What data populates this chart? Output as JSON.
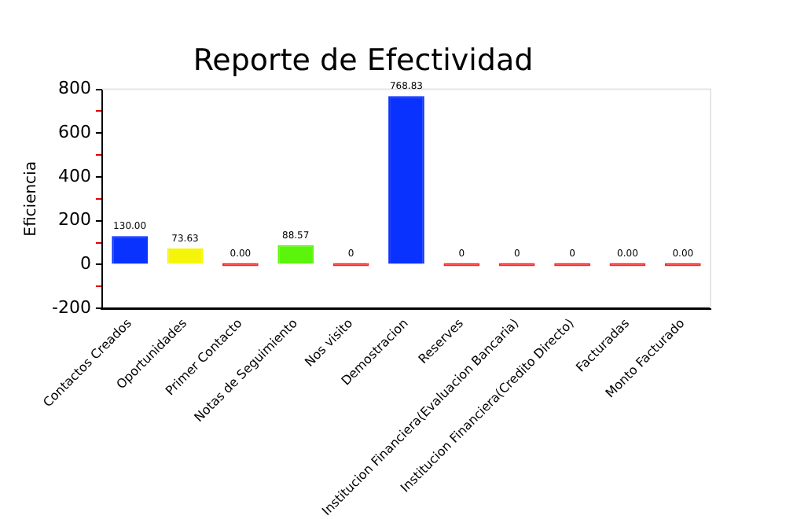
{
  "chart_data": {
    "type": "bar",
    "title": "Reporte de Efectividad",
    "ylabel": "Eficiencia",
    "categories": [
      "Contactos Creados",
      "Oportunidades",
      "Primer Contacto",
      "Notas de Seguimiento",
      "Nos visito",
      "Demostracion",
      "Reserves",
      "Institucion Financiera(Evaluacion Bancaria)",
      "Institucion Financiera(Credito Directo)",
      "Facturadas",
      "Monto Facturado"
    ],
    "values": [
      130.0,
      73.63,
      0.0,
      88.57,
      0,
      768.83,
      0,
      0,
      0,
      0.0,
      0.0
    ],
    "value_labels": [
      "130.00",
      "73.63",
      "0.00",
      "88.57",
      "0",
      "768.83",
      "0",
      "0",
      "0",
      "0.00",
      "0.00"
    ],
    "colors": [
      "#0a32ff",
      "#f5f50a",
      "#ff2020",
      "#5af50a",
      "#ff2020",
      "#0a32ff",
      "#ff2020",
      "#ff2020",
      "#ff2020",
      "#ff2020",
      "#ff2020"
    ],
    "ylim": [
      -200,
      800
    ],
    "yticks": [
      -200,
      {
        "value": -100,
        "label": null
      },
      0,
      {
        "value": 100,
        "label": null
      },
      200,
      {
        "value": 300,
        "label": null
      },
      400,
      {
        "value": 500,
        "label": null
      },
      600,
      {
        "value": 700,
        "label": null
      },
      800
    ],
    "grid": false,
    "legend": false
  }
}
